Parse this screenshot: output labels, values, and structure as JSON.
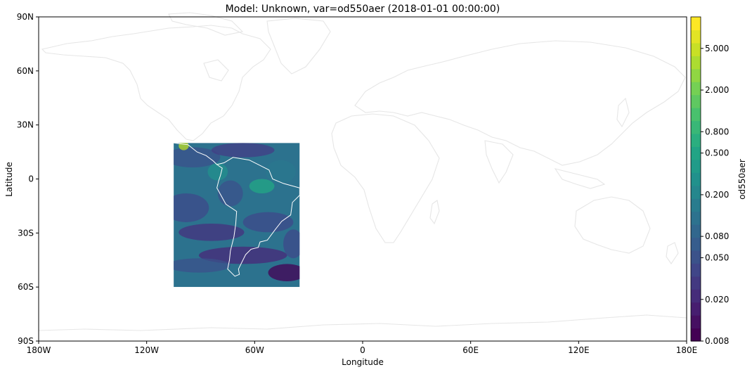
{
  "title": "Model: Unknown, var=od550aer (2018-01-01 00:00:00)",
  "map": {
    "xlabel": "Longitude",
    "ylabel": "Latitude",
    "lon_range": [
      -180,
      180
    ],
    "lat_range": [
      -90,
      90
    ],
    "x_ticks": [
      {
        "value": -180,
        "label": "180W"
      },
      {
        "value": -120,
        "label": "120W"
      },
      {
        "value": -60,
        "label": "60W"
      },
      {
        "value": 0,
        "label": "0"
      },
      {
        "value": 60,
        "label": "60E"
      },
      {
        "value": 120,
        "label": "120E"
      },
      {
        "value": 180,
        "label": "180E"
      }
    ],
    "y_ticks": [
      {
        "value": 90,
        "label": "90N"
      },
      {
        "value": 60,
        "label": "60N"
      },
      {
        "value": 30,
        "label": "30N"
      },
      {
        "value": 0,
        "label": "0"
      },
      {
        "value": -30,
        "label": "30S"
      },
      {
        "value": -60,
        "label": "60S"
      },
      {
        "value": -90,
        "label": "90S"
      }
    ],
    "data_region": {
      "lon_min": -105,
      "lon_max": -35,
      "lat_min": -60,
      "lat_max": 20
    },
    "coastline_color": "#e6e6e6",
    "region_coastline_color": "#ffffff"
  },
  "colorbar": {
    "label": "od550aer",
    "scale": "log",
    "range": [
      0.008,
      10
    ],
    "levels": 25,
    "tick_labels": [
      "0.008",
      "0.020",
      "0.050",
      "0.080",
      "0.200",
      "0.500",
      "0.800",
      "2.000",
      "5.000"
    ],
    "tick_values": [
      0.008,
      0.02,
      0.05,
      0.08,
      0.2,
      0.5,
      0.8,
      2.0,
      5.0
    ],
    "colormap": "viridis"
  }
}
